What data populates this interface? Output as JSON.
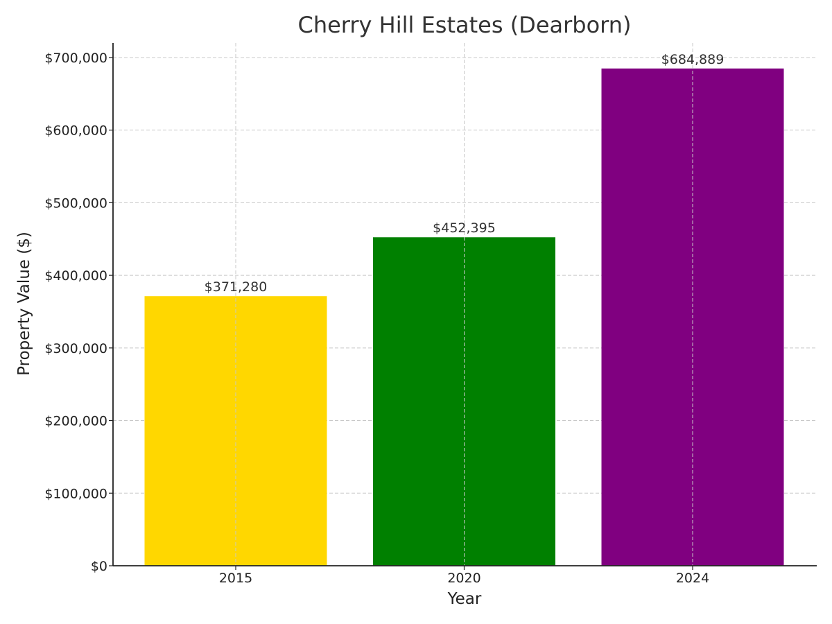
{
  "chart_data": {
    "type": "bar",
    "title": "Cherry Hill Estates (Dearborn)",
    "xlabel": "Year",
    "ylabel": "Property Value ($)",
    "categories": [
      "2015",
      "2020",
      "2024"
    ],
    "values": [
      371280,
      452395,
      684889
    ],
    "value_labels": [
      "$371,280",
      "$452,395",
      "$684,889"
    ],
    "colors": [
      "#FFD700",
      "#008000",
      "#800080"
    ],
    "ylim": [
      0,
      720000
    ],
    "yticks": [
      0,
      100000,
      200000,
      300000,
      400000,
      500000,
      600000,
      700000
    ],
    "ytick_labels": [
      "$0",
      "$100,000",
      "$200,000",
      "$300,000",
      "$400,000",
      "$500,000",
      "$600,000",
      "$700,000"
    ],
    "grid": true
  }
}
